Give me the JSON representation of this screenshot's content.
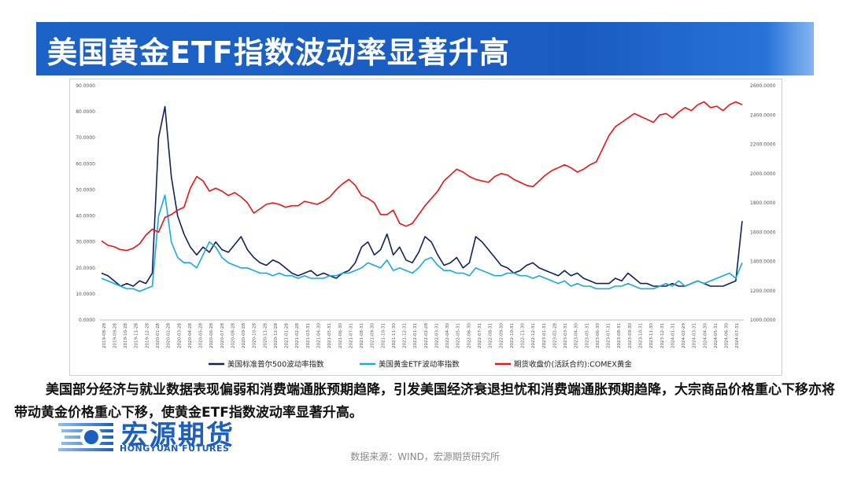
{
  "slide": {
    "title": "美国黄金ETF指数波动率显著升高",
    "caption": "美国部分经济与就业数据表现偏弱和消费端通胀预期趋降，引发美国经济衰退担忧和消费端通胀预期趋降，大宗商品价格重心下移亦将带动黄金价格重心下移，使黄金ETF指数波动率显著升高。",
    "source": "数据来源：WIND，宏源期货研究所",
    "logo_name": "宏源期货",
    "logo_en": "HONGYUAN FUTURES"
  },
  "colors": {
    "spx_vol": "#14205a",
    "gold_etf_vol": "#16a9e6",
    "comex_gold": "#ee1111",
    "title_bg": "#1c63c7"
  },
  "chart_data": {
    "type": "line",
    "left_axis": {
      "min": 0,
      "max": 90,
      "ticks": [
        "0.0000",
        "10.0000",
        "20.0000",
        "30.0000",
        "40.0000",
        "50.0000",
        "60.0000",
        "70.0000",
        "80.0000",
        "90.0000"
      ]
    },
    "right_axis": {
      "min": 1000,
      "max": 2600,
      "ticks": [
        "1000.0000",
        "1200.0000",
        "1400.0000",
        "1600.0000",
        "1800.0000",
        "2000.0000",
        "2200.0000",
        "2400.0000",
        "2600.0000"
      ]
    },
    "x_ticks": [
      "2019-08-28",
      "2019-09-28",
      "2019-10-28",
      "2019-11-28",
      "2019-12-28",
      "2020-01-28",
      "2020-02-28",
      "2020-03-28",
      "2020-04-28",
      "2020-05-28",
      "2020-06-28",
      "2020-07-28",
      "2020-08-28",
      "2020-09-28",
      "2020-10-28",
      "2020-11-28",
      "2020-12-28",
      "2021-01-28",
      "2021-02-28",
      "2021-03-31",
      "2021-04-30",
      "2021-05-31",
      "2021-06-30",
      "2021-07-31",
      "2021-08-31",
      "2021-09-30",
      "2021-10-31",
      "2021-11-30",
      "2021-12-31",
      "2022-01-31",
      "2022-02-28",
      "2022-03-31",
      "2022-04-30",
      "2022-05-31",
      "2022-06-30",
      "2022-07-31",
      "2022-08-31",
      "2022-09-30",
      "2022-10-31",
      "2022-11-30",
      "2022-12-31",
      "2023-01-31",
      "2023-02-28",
      "2023-03-31",
      "2023-04-30",
      "2023-05-31",
      "2023-06-30",
      "2023-07-31",
      "2023-08-31",
      "2023-09-30",
      "2023-10-31",
      "2023-11-30",
      "2023-12-31",
      "2024-01-31",
      "2024-02-29",
      "2024-03-31",
      "2024-04-30",
      "2024-05-31",
      "2024-06-30",
      "2024-07-31"
    ],
    "series": [
      {
        "name": "美国标准普尔500波动率指数",
        "axis": "left",
        "values": [
          18,
          17,
          15,
          13,
          14,
          13,
          15,
          14,
          18,
          70,
          82,
          55,
          40,
          33,
          28,
          25,
          28,
          26,
          30,
          27,
          26,
          29,
          32,
          27,
          24,
          22,
          21,
          23,
          22,
          20,
          18,
          17,
          18,
          19,
          17,
          18,
          17,
          16,
          18,
          19,
          22,
          28,
          30,
          25,
          27,
          33,
          25,
          28,
          23,
          22,
          26,
          32,
          30,
          25,
          21,
          22,
          24,
          20,
          22,
          32,
          30,
          27,
          24,
          21,
          20,
          18,
          19,
          21,
          22,
          20,
          19,
          18,
          17,
          19,
          17,
          18,
          16,
          15,
          14,
          14,
          14,
          16,
          15,
          18,
          16,
          14,
          14,
          13,
          13,
          13,
          14,
          13,
          13,
          14,
          15,
          14,
          13,
          13,
          13,
          14,
          15,
          38
        ]
      },
      {
        "name": "美国黄金ETF波动率指数",
        "axis": "left",
        "values": [
          16,
          15,
          14,
          13,
          12,
          12,
          11,
          12,
          13,
          40,
          48,
          30,
          24,
          22,
          22,
          20,
          25,
          30,
          28,
          24,
          22,
          21,
          20,
          20,
          19,
          18,
          18,
          17,
          18,
          17,
          17,
          16,
          17,
          16,
          16,
          16,
          17,
          17,
          18,
          18,
          19,
          20,
          22,
          21,
          20,
          23,
          19,
          20,
          19,
          18,
          20,
          23,
          24,
          21,
          19,
          19,
          18,
          18,
          17,
          20,
          19,
          18,
          17,
          17,
          18,
          18,
          17,
          17,
          16,
          17,
          16,
          15,
          14,
          15,
          13,
          14,
          13,
          13,
          12,
          12,
          12,
          13,
          13,
          14,
          13,
          12,
          12,
          12,
          13,
          14,
          13,
          15,
          13,
          14,
          15,
          14,
          15,
          16,
          17,
          18,
          16,
          22
        ]
      },
      {
        "name": "期货收盘价(活跃合约):COMEX黄金",
        "axis": "right",
        "values": [
          1540,
          1510,
          1500,
          1480,
          1475,
          1490,
          1520,
          1580,
          1620,
          1600,
          1700,
          1720,
          1750,
          1770,
          1900,
          1980,
          1950,
          1880,
          1900,
          1880,
          1850,
          1870,
          1840,
          1800,
          1730,
          1760,
          1790,
          1800,
          1790,
          1770,
          1780,
          1780,
          1810,
          1800,
          1790,
          1810,
          1840,
          1890,
          1930,
          1960,
          1920,
          1850,
          1830,
          1800,
          1720,
          1720,
          1750,
          1660,
          1640,
          1660,
          1720,
          1780,
          1830,
          1880,
          1950,
          1990,
          2030,
          2010,
          1980,
          1960,
          1950,
          1940,
          1980,
          2000,
          1990,
          1960,
          1940,
          1920,
          1910,
          1950,
          1990,
          2020,
          2040,
          2060,
          2040,
          2010,
          2030,
          2060,
          2080,
          2170,
          2260,
          2320,
          2350,
          2380,
          2410,
          2390,
          2370,
          2350,
          2400,
          2410,
          2380,
          2420,
          2450,
          2430,
          2470,
          2490,
          2450,
          2460,
          2430,
          2470,
          2490,
          2470
        ]
      }
    ],
    "legend": [
      "美国标准普尔500波动率指数",
      "美国黄金ETF波动率指数",
      "期货收盘价(活跃合约):COMEX黄金"
    ],
    "legend_position": "bottom",
    "gridlines": false
  }
}
